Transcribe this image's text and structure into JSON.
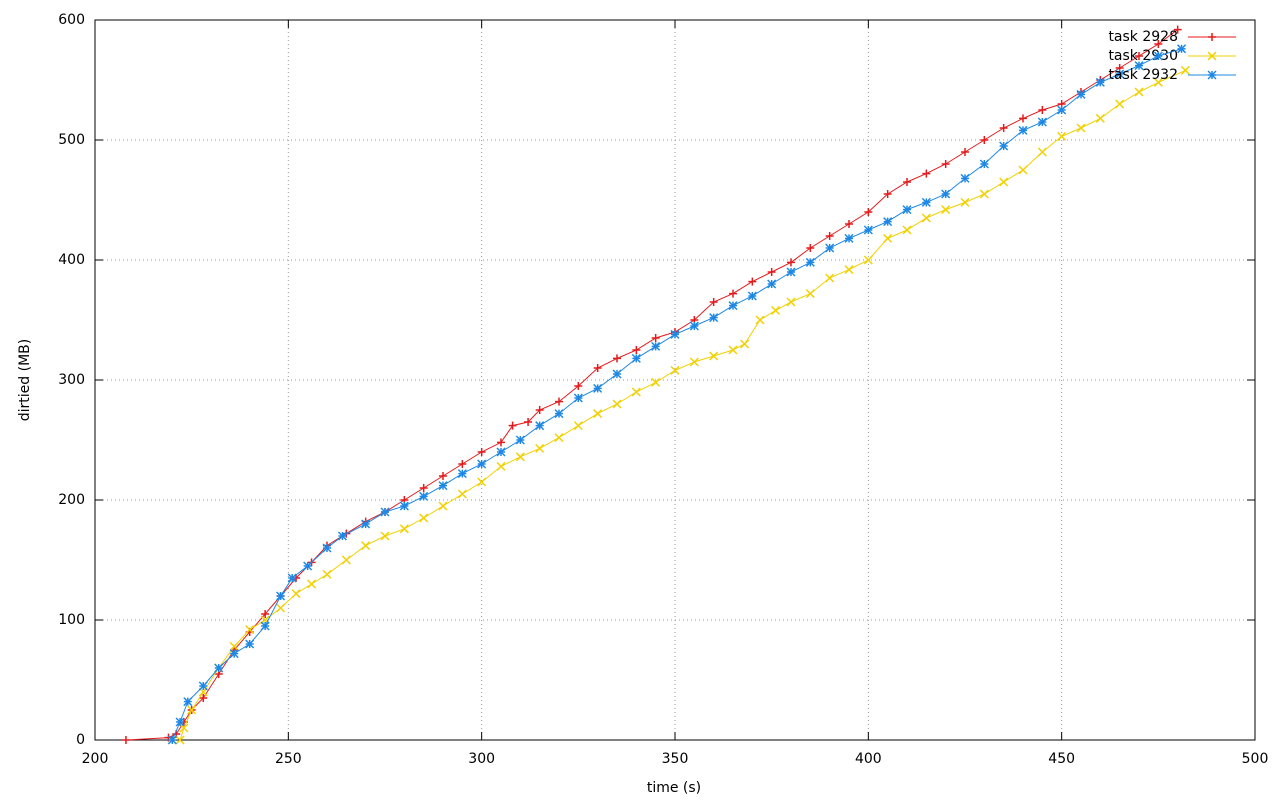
{
  "chart_data": {
    "type": "line",
    "xlabel": "time (s)",
    "ylabel": "dirtied (MB)",
    "xlim": [
      200,
      500
    ],
    "xticks": [
      200,
      250,
      300,
      350,
      400,
      450,
      500
    ],
    "ylim": [
      0,
      600
    ],
    "yticks": [
      0,
      100,
      200,
      300,
      400,
      500,
      600
    ],
    "grid": true,
    "legend": "top-right",
    "series": [
      {
        "name": "task 2928",
        "color": "#e41a1c",
        "marker": "plus",
        "x": [
          208,
          219,
          221,
          223,
          225,
          228,
          232,
          236,
          240,
          244,
          248,
          252,
          256,
          260,
          265,
          270,
          275,
          280,
          285,
          290,
          295,
          300,
          305,
          308,
          312,
          315,
          320,
          325,
          330,
          335,
          340,
          345,
          350,
          355,
          360,
          365,
          370,
          375,
          380,
          385,
          390,
          395,
          400,
          405,
          410,
          415,
          420,
          425,
          430,
          435,
          440,
          445,
          450,
          455,
          460,
          465,
          470,
          475,
          480
        ],
        "values": [
          0,
          2,
          5,
          15,
          25,
          35,
          55,
          75,
          90,
          105,
          120,
          135,
          148,
          162,
          172,
          182,
          190,
          200,
          210,
          220,
          230,
          240,
          248,
          262,
          265,
          275,
          282,
          295,
          310,
          318,
          325,
          335,
          340,
          350,
          365,
          372,
          382,
          390,
          398,
          410,
          420,
          430,
          440,
          455,
          465,
          472,
          480,
          490,
          500,
          510,
          518,
          525,
          530,
          540,
          550,
          560,
          570,
          580,
          592
        ]
      },
      {
        "name": "task 2930",
        "color": "#f2d000",
        "marker": "cross",
        "x": [
          222,
          223,
          225,
          228,
          232,
          236,
          240,
          244,
          248,
          252,
          256,
          260,
          265,
          270,
          275,
          280,
          285,
          290,
          295,
          300,
          305,
          310,
          315,
          320,
          325,
          330,
          335,
          340,
          345,
          350,
          355,
          360,
          365,
          368,
          372,
          376,
          380,
          385,
          390,
          395,
          400,
          405,
          410,
          415,
          420,
          425,
          430,
          435,
          440,
          445,
          450,
          455,
          460,
          465,
          470,
          475,
          482
        ],
        "values": [
          0,
          10,
          25,
          40,
          60,
          78,
          92,
          100,
          110,
          122,
          130,
          138,
          150,
          162,
          170,
          176,
          185,
          195,
          205,
          215,
          228,
          236,
          243,
          252,
          262,
          272,
          280,
          290,
          298,
          308,
          315,
          320,
          325,
          330,
          350,
          358,
          365,
          372,
          385,
          392,
          400,
          418,
          425,
          435,
          442,
          448,
          455,
          465,
          475,
          490,
          503,
          510,
          518,
          530,
          540,
          548,
          558
        ]
      },
      {
        "name": "task 2932",
        "color": "#1e88e5",
        "marker": "star",
        "x": [
          220,
          222,
          224,
          228,
          232,
          236,
          240,
          244,
          248,
          251,
          255,
          260,
          264,
          270,
          275,
          280,
          285,
          290,
          295,
          300,
          305,
          310,
          315,
          320,
          325,
          330,
          335,
          340,
          345,
          350,
          355,
          360,
          365,
          370,
          375,
          380,
          385,
          390,
          395,
          400,
          405,
          410,
          415,
          420,
          425,
          430,
          435,
          440,
          445,
          450,
          455,
          460,
          465,
          470,
          475,
          481
        ],
        "values": [
          0,
          15,
          32,
          45,
          60,
          72,
          80,
          95,
          120,
          135,
          145,
          160,
          170,
          180,
          190,
          195,
          203,
          212,
          222,
          230,
          240,
          250,
          262,
          272,
          285,
          293,
          305,
          318,
          328,
          338,
          345,
          352,
          362,
          370,
          380,
          390,
          398,
          410,
          418,
          425,
          432,
          442,
          448,
          455,
          468,
          480,
          495,
          508,
          515,
          525,
          538,
          548,
          555,
          562,
          570,
          576
        ]
      }
    ]
  }
}
